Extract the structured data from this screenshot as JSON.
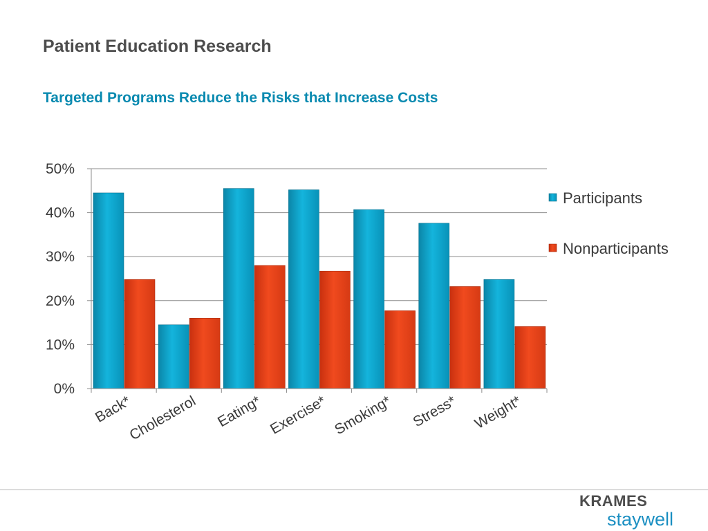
{
  "slide": {
    "title": "Patient Education Research",
    "subtitle": "Targeted Programs Reduce the Risks that Increase Costs"
  },
  "logo": {
    "line1": "KRAMES",
    "line2": "staywell"
  },
  "colors": {
    "participants": "#0aa6cc",
    "nonparticipants": "#e8401a",
    "subtitle": "#0a8ab0"
  },
  "chart_data": {
    "type": "bar",
    "categories": [
      "Back*",
      "Cholesterol",
      "Eating*",
      "Exercise*",
      "Smoking*",
      "Stress*",
      "Weight*"
    ],
    "series": [
      {
        "name": "Participants",
        "values": [
          44.5,
          14.5,
          45.5,
          45.2,
          40.7,
          37.6,
          24.8
        ]
      },
      {
        "name": "Nonparticipants",
        "values": [
          24.8,
          16.0,
          28.0,
          26.7,
          17.7,
          23.2,
          14.1
        ]
      }
    ],
    "yticks": [
      "0%",
      "10%",
      "20%",
      "30%",
      "40%",
      "50%"
    ],
    "ylim": [
      0,
      50
    ],
    "grid": true,
    "legend": "right"
  }
}
